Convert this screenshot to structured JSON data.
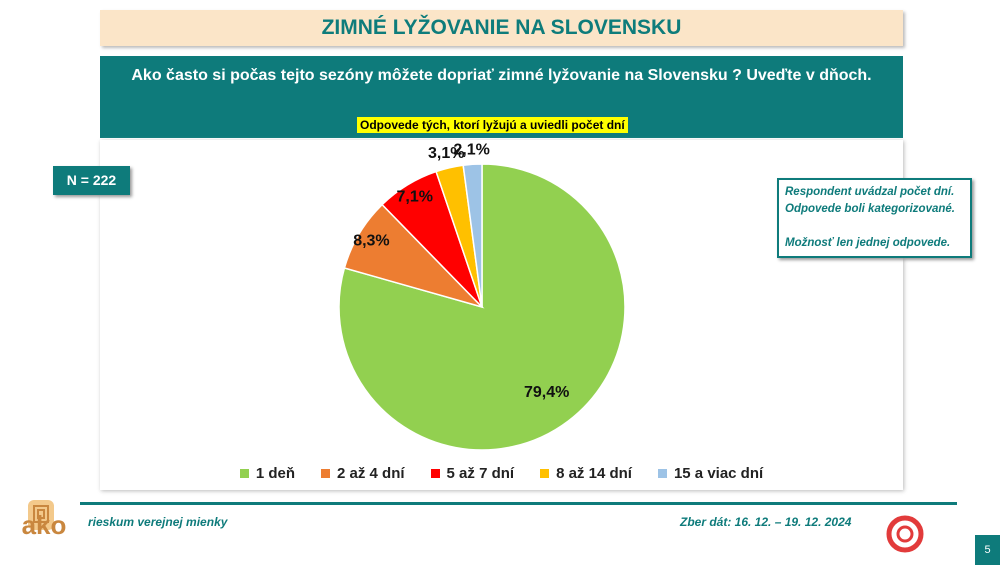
{
  "title": "ZIMNÉ LYŽOVANIE NA SLOVENSKU",
  "question": "Ako často si počas tejto sezóny  môžete dopriať zimné lyžovanie na Slovensku ? Uveďte v dňoch.",
  "filter": "Odpovede tých, ktorí lyžujú a uviedli počet dní",
  "sample": "N = 222",
  "notes": [
    "Respondent uvádzal počet dní.",
    "Odpovede boli kategorizované.",
    "Možnosť len jednej odpovede."
  ],
  "footer": {
    "logo": "ako",
    "left": "rieskum verejnej mienky",
    "right": "Zber dát: 16. 12. – 19. 12. 2024",
    "page": "5"
  },
  "chart_data": {
    "type": "pie",
    "categories": [
      "1 deň",
      "2 až 4 dní",
      "5 až 7 dní",
      "8 až 14 dní",
      "15 a viac dní"
    ],
    "values": [
      79.4,
      8.3,
      7.1,
      3.1,
      2.1
    ],
    "value_labels": [
      "79,4%",
      "8,3%",
      "7,1%",
      "3,1%",
      "2,1%"
    ],
    "colors": [
      "#92d050",
      "#ed7d31",
      "#ff0000",
      "#ffc000",
      "#9dc3e6"
    ]
  }
}
